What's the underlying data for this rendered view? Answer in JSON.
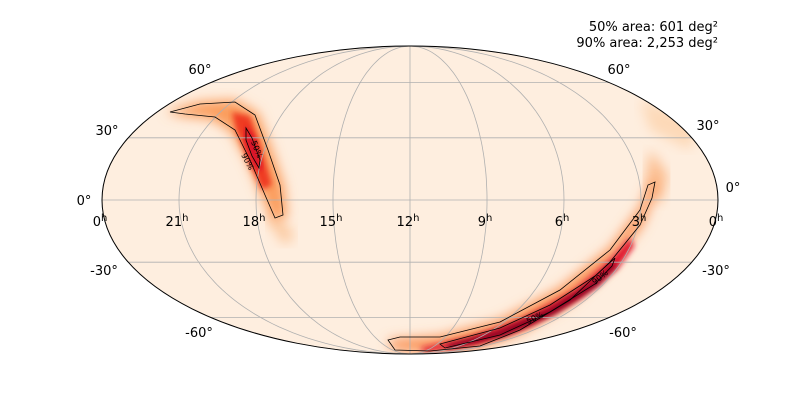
{
  "annotations": {
    "area_50": "50% area: 601 deg²",
    "area_90": "90% area: 2,253 deg²"
  },
  "chart_data": {
    "type": "heatmap",
    "projection": "mollweide",
    "title": "",
    "ra_tick_labels": [
      "0",
      "21",
      "18",
      "15",
      "12",
      "9",
      "6",
      "3",
      "0"
    ],
    "ra_tick_values_hours": [
      24,
      21,
      18,
      15,
      12,
      9,
      6,
      3,
      0
    ],
    "ra_unit": "h",
    "dec_tick_values": [
      60,
      30,
      0,
      -30,
      -60
    ],
    "dec_tick_labels": [
      "60°",
      "30°",
      "0°",
      "-30°",
      "-60°"
    ],
    "contours": [
      {
        "level": "50%",
        "label": "50%"
      },
      {
        "level": "90%",
        "label": "90%"
      }
    ],
    "colormap": [
      "#fff0e1",
      "#fdc89d",
      "#f88b4b",
      "#e8261c",
      "#c00046",
      "#5a0012"
    ],
    "grid": true
  }
}
